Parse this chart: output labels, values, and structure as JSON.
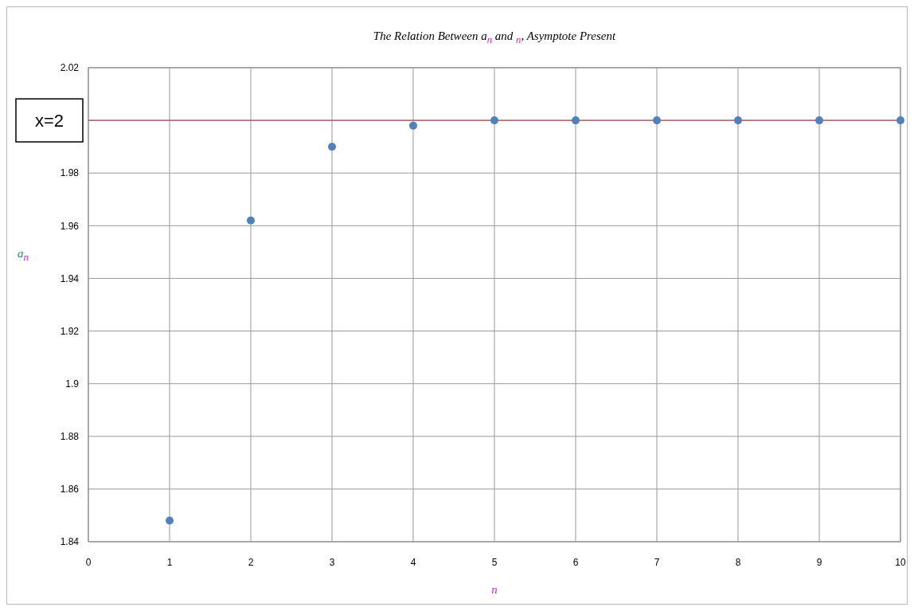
{
  "chart_data": {
    "type": "scatter",
    "title": "The Relation Between a$_{n}$ and $_{n}$, Asymptote Present",
    "xlabel": "n",
    "ylabel": "a$_{n}$",
    "x": [
      1,
      2,
      3,
      4,
      5,
      6,
      7,
      8,
      9,
      10
    ],
    "series": [
      {
        "color": "#4f81bd",
        "values": [
          1.848,
          1.962,
          1.99,
          1.998,
          2.0,
          2.0,
          2.0,
          2.0,
          2.0,
          2.0
        ]
      }
    ],
    "xlim": [
      0,
      10
    ],
    "xticks": [
      0,
      1,
      2,
      3,
      4,
      5,
      6,
      7,
      8,
      9,
      10
    ],
    "ylim": [
      1.84,
      2.02
    ],
    "yticks": [
      1.84,
      1.86,
      1.88,
      {
        "value": 1.9,
        "label": "1.9"
      },
      1.92,
      1.94,
      1.96,
      1.98,
      {
        "value": 2,
        "label": null
      },
      2.02
    ],
    "ref_lines": [
      {
        "axis": "y",
        "value": 2,
        "label": "x=2",
        "color": "#c0504d"
      }
    ],
    "grid": true,
    "marker": "circle"
  }
}
